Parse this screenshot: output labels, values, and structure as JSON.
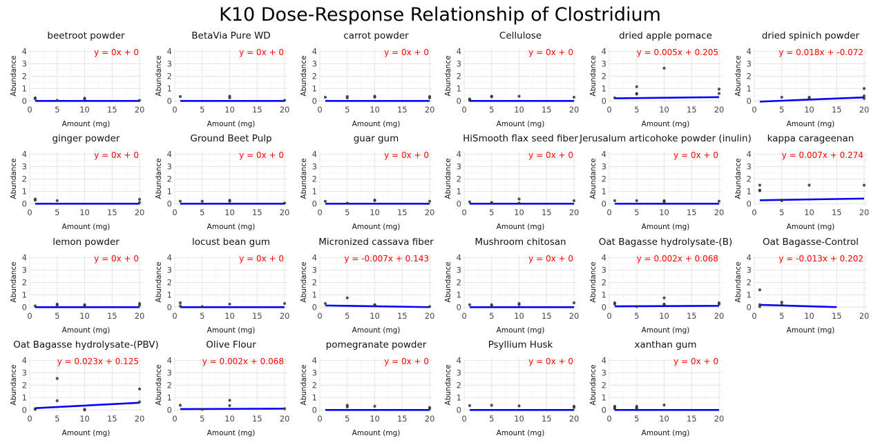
{
  "chart_data": {
    "type": "scatter",
    "title": "K10 Dose-Response Relationship of Clostridium",
    "xlabel": "Amount (mg)",
    "ylabel": "Abundance",
    "x_ticks": [
      0,
      5,
      10,
      15,
      20
    ],
    "y_ticks": [
      0,
      1,
      2,
      3,
      4
    ],
    "xlim": [
      0,
      20.5
    ],
    "ylim": [
      -0.15,
      4.2
    ],
    "grid": true,
    "colors": {
      "points": "#333333",
      "fit_line": "#0000ff",
      "equation": "#ff0000"
    },
    "panels": [
      {
        "name": "beetroot powder",
        "equation": "y = 0x + 0",
        "slope": 0,
        "intercept": 0,
        "fit_range": [
          1,
          20
        ],
        "points": [
          [
            1,
            0.18
          ],
          [
            1,
            0.25
          ],
          [
            5,
            0.05
          ],
          [
            10,
            0.15
          ],
          [
            10,
            0.22
          ],
          [
            20,
            0.05
          ]
        ]
      },
      {
        "name": "BetaVia Pure WD",
        "equation": "y = 0x + 0",
        "slope": 0,
        "intercept": 0,
        "fit_range": [
          1,
          20
        ],
        "points": [
          [
            1,
            0.35
          ],
          [
            10,
            0.38
          ],
          [
            10,
            0.25
          ],
          [
            20,
            0.05
          ]
        ]
      },
      {
        "name": "carrot powder",
        "equation": "y = 0x + 0",
        "slope": 0,
        "intercept": 0,
        "fit_range": [
          1,
          20
        ],
        "points": [
          [
            1,
            0.3
          ],
          [
            5,
            0.25
          ],
          [
            5,
            0.35
          ],
          [
            10,
            0.3
          ],
          [
            10,
            0.38
          ],
          [
            20,
            0.25
          ],
          [
            20,
            0.35
          ]
        ]
      },
      {
        "name": "Cellulose",
        "equation": "y = 0x + 0",
        "slope": 0,
        "intercept": 0,
        "fit_range": [
          1,
          20
        ],
        "points": [
          [
            1,
            0.05
          ],
          [
            1,
            0.1
          ],
          [
            1,
            0.15
          ],
          [
            5,
            0.38
          ],
          [
            5,
            0.33
          ],
          [
            10,
            0.38
          ],
          [
            20,
            0.3
          ]
        ]
      },
      {
        "name": "dried apple pomace",
        "equation": "y = 0.005x + 0.205",
        "slope": 0.005,
        "intercept": 0.205,
        "fit_range": [
          1,
          20
        ],
        "points": [
          [
            1,
            0.25
          ],
          [
            5,
            1.15
          ],
          [
            5,
            0.6
          ],
          [
            5,
            0.55
          ],
          [
            10,
            2.65
          ],
          [
            20,
            0.95
          ],
          [
            20,
            0.6
          ]
        ]
      },
      {
        "name": "dried spinich powder",
        "equation": "y = 0.018x + -0.072",
        "slope": 0.018,
        "intercept": -0.072,
        "fit_range": [
          1,
          20
        ],
        "points": [
          [
            5,
            0.3
          ],
          [
            10,
            0.3
          ],
          [
            10,
            0.2
          ],
          [
            20,
            1.0
          ],
          [
            20,
            0.4
          ],
          [
            20,
            0.2
          ]
        ]
      },
      {
        "name": "ginger powder",
        "equation": "y = 0x + 0",
        "slope": 0,
        "intercept": 0,
        "fit_range": [
          1,
          20
        ],
        "points": [
          [
            1,
            0.38
          ],
          [
            1,
            0.28
          ],
          [
            5,
            0.25
          ],
          [
            20,
            0.35
          ],
          [
            20,
            0.1
          ]
        ]
      },
      {
        "name": "Ground Beet Pulp",
        "equation": "y = 0x + 0",
        "slope": 0,
        "intercept": 0,
        "fit_range": [
          1,
          20
        ],
        "points": [
          [
            1,
            0.2
          ],
          [
            5,
            0.2
          ],
          [
            10,
            0.28
          ],
          [
            10,
            0.2
          ],
          [
            20,
            0.05
          ]
        ]
      },
      {
        "name": "guar gum",
        "equation": "y = 0x + 0",
        "slope": 0,
        "intercept": 0,
        "fit_range": [
          1,
          20
        ],
        "points": [
          [
            1,
            0.2
          ],
          [
            5,
            0.05
          ],
          [
            10,
            0.3
          ],
          [
            10,
            0.25
          ],
          [
            20,
            0.2
          ]
        ]
      },
      {
        "name": "HiSmooth flax seed fiber",
        "equation": "y = 0x + 0",
        "slope": 0,
        "intercept": 0,
        "fit_range": [
          1,
          20
        ],
        "points": [
          [
            1,
            0.15
          ],
          [
            5,
            0.1
          ],
          [
            5,
            0.05
          ],
          [
            10,
            0.38
          ],
          [
            10,
            0.05
          ],
          [
            20,
            0.25
          ]
        ]
      },
      {
        "name": "Jerusalum articohoke powder (inulin)",
        "equation": "y = 0x + 0",
        "slope": 0,
        "intercept": 0,
        "fit_range": [
          1,
          20
        ],
        "points": [
          [
            1,
            0.25
          ],
          [
            5,
            0.25
          ],
          [
            10,
            0.25
          ],
          [
            10,
            0.18
          ],
          [
            10,
            0.05
          ],
          [
            20,
            0.2
          ]
        ]
      },
      {
        "name": "kappa carageenan",
        "equation": "y = 0.007x + 0.274",
        "slope": 0.007,
        "intercept": 0.274,
        "fit_range": [
          1,
          20
        ],
        "points": [
          [
            1,
            1.5
          ],
          [
            1,
            1.1
          ],
          [
            1,
            1.05
          ],
          [
            5,
            0.3
          ],
          [
            5,
            0.25
          ],
          [
            10,
            1.5
          ],
          [
            20,
            1.5
          ]
        ]
      },
      {
        "name": "lemon powder",
        "equation": "y = 0x + 0",
        "slope": 0,
        "intercept": 0,
        "fit_range": [
          1,
          20
        ],
        "points": [
          [
            1,
            0.1
          ],
          [
            5,
            0.25
          ],
          [
            5,
            0.15
          ],
          [
            10,
            0.2
          ],
          [
            10,
            0.1
          ],
          [
            20,
            0.3
          ],
          [
            20,
            0.15
          ]
        ]
      },
      {
        "name": "locust bean gum",
        "equation": "y = 0x + 0",
        "slope": 0,
        "intercept": 0,
        "fit_range": [
          1,
          20
        ],
        "points": [
          [
            1,
            0.35
          ],
          [
            1,
            0.1
          ],
          [
            5,
            0.05
          ],
          [
            10,
            0.25
          ],
          [
            20,
            0.3
          ]
        ]
      },
      {
        "name": "Micronized cassava fiber",
        "equation": "y = -0.007x + 0.143",
        "slope": -0.007,
        "intercept": 0.143,
        "fit_range": [
          1,
          20
        ],
        "points": [
          [
            1,
            0.3
          ],
          [
            5,
            0.75
          ],
          [
            10,
            0.2
          ],
          [
            10,
            0.15
          ],
          [
            20,
            0.05
          ]
        ]
      },
      {
        "name": "Mushroom chitosan",
        "equation": "y = 0x + 0",
        "slope": 0,
        "intercept": 0,
        "fit_range": [
          1,
          20
        ],
        "points": [
          [
            1,
            0.2
          ],
          [
            5,
            0.2
          ],
          [
            5,
            0.1
          ],
          [
            10,
            0.3
          ],
          [
            10,
            0.2
          ],
          [
            20,
            0.35
          ]
        ]
      },
      {
        "name": "Oat Bagasse hydrolysate-(B)",
        "equation": "y = 0.002x + 0.068",
        "slope": 0.002,
        "intercept": 0.068,
        "fit_range": [
          1,
          20
        ],
        "points": [
          [
            1,
            0.35
          ],
          [
            1,
            0.25
          ],
          [
            5,
            0.05
          ],
          [
            10,
            0.75
          ],
          [
            10,
            0.25
          ],
          [
            10,
            0.2
          ],
          [
            20,
            0.35
          ],
          [
            20,
            0.25
          ]
        ]
      },
      {
        "name": "Oat Bagasse-Control",
        "equation": "y = -0.013x + 0.202",
        "slope": -0.013,
        "intercept": 0.202,
        "fit_range": [
          1,
          15
        ],
        "points": [
          [
            1,
            1.4
          ],
          [
            1,
            0.2
          ],
          [
            1,
            0.05
          ],
          [
            5,
            0.4
          ],
          [
            5,
            0.2
          ]
        ]
      },
      {
        "name": "Oat Bagasse hydrolysate-(PBV)",
        "equation": "y = 0.023x + 0.125",
        "slope": 0.023,
        "intercept": 0.125,
        "fit_range": [
          1,
          20
        ],
        "points": [
          [
            1,
            0.1
          ],
          [
            1,
            0.05
          ],
          [
            5,
            2.55
          ],
          [
            5,
            0.75
          ],
          [
            10,
            0.05
          ],
          [
            10,
            0.0
          ],
          [
            20,
            1.7
          ],
          [
            20,
            0.65
          ]
        ]
      },
      {
        "name": "Olive Flour",
        "equation": "y = 0.002x + 0.068",
        "slope": 0.002,
        "intercept": 0.068,
        "fit_range": [
          1,
          20
        ],
        "points": [
          [
            1,
            0.38
          ],
          [
            5,
            0.05
          ],
          [
            10,
            0.78
          ],
          [
            10,
            0.35
          ],
          [
            20,
            0.1
          ]
        ]
      },
      {
        "name": "pomegranate powder",
        "equation": "y = 0x + 0",
        "slope": 0,
        "intercept": 0,
        "fit_range": [
          1,
          20
        ],
        "points": [
          [
            5,
            0.38
          ],
          [
            5,
            0.25
          ],
          [
            10,
            0.3
          ],
          [
            20,
            0.2
          ],
          [
            20,
            0.1
          ]
        ]
      },
      {
        "name": "Psyllium Husk",
        "equation": "y = 0x + 0",
        "slope": 0,
        "intercept": 0,
        "fit_range": [
          1,
          20
        ],
        "points": [
          [
            1,
            0.35
          ],
          [
            5,
            0.38
          ],
          [
            10,
            0.33
          ],
          [
            20,
            0.3
          ],
          [
            20,
            0.2
          ]
        ]
      },
      {
        "name": "xanthan gum",
        "equation": "y = 0x + 0",
        "slope": 0,
        "intercept": 0,
        "fit_range": [
          1,
          20
        ],
        "points": [
          [
            1,
            0.3
          ],
          [
            1,
            0.2
          ],
          [
            1,
            0.1
          ],
          [
            5,
            0.3
          ],
          [
            5,
            0.2
          ],
          [
            5,
            0.1
          ],
          [
            10,
            0.4
          ]
        ]
      }
    ]
  }
}
